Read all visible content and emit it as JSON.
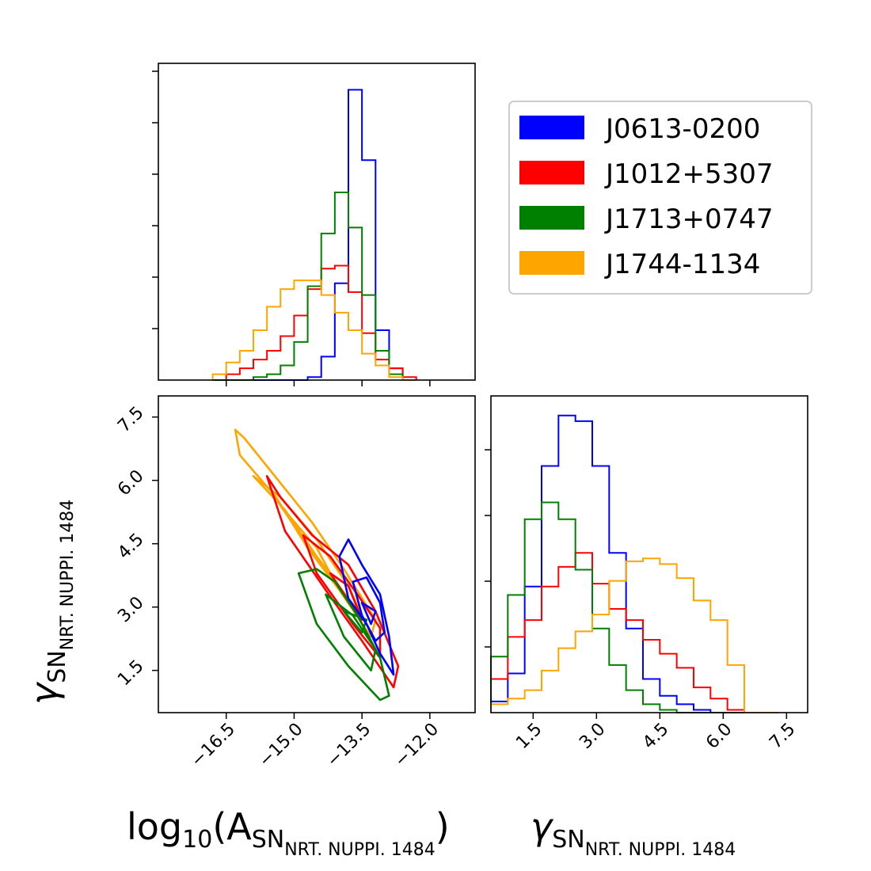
{
  "chart_data": {
    "type": "corner",
    "parameters": [
      {
        "id": "logA",
        "label_main": "log",
        "label_sub10": "10",
        "label_paren_open": "(A",
        "label_sn": "SN",
        "label_sub": "NRT. NUPPI. 1484",
        "label_paren_close": ")",
        "ticks": [
          "−16.5",
          "−15.0",
          "−13.5",
          "−12.0"
        ],
        "tick_values": [
          -16.5,
          -15.0,
          -13.5,
          -12.0
        ],
        "range": [
          -18.0,
          -11.0
        ]
      },
      {
        "id": "gamma",
        "label_main": "γ",
        "label_sn": "SN",
        "label_sub": "NRT. NUPPI. 1484",
        "ticks": [
          "1.5",
          "3.0",
          "4.5",
          "6.0",
          "7.5"
        ],
        "tick_values": [
          1.5,
          3.0,
          4.5,
          6.0,
          7.5
        ],
        "range": [
          0.5,
          8.0
        ]
      }
    ],
    "legend": {
      "placement": "top-right",
      "entries": [
        {
          "name": "J0613-0200",
          "color": "#0000ff"
        },
        {
          "name": "J1012+5307",
          "color": "#ff0000"
        },
        {
          "name": "J1713+0747",
          "color": "#008000"
        },
        {
          "name": "J1744-1134",
          "color": "#ffa500"
        }
      ]
    },
    "hist_logA": {
      "bin_edges": [
        -16.8,
        -16.5,
        -16.2,
        -15.9,
        -15.6,
        -15.3,
        -15.0,
        -14.7,
        -14.4,
        -14.1,
        -13.8,
        -13.5,
        -13.2,
        -12.9,
        -12.6,
        -12.3
      ],
      "series": [
        {
          "name": "J0613-0200",
          "color": "#0000ff",
          "values": [
            0,
            0,
            0,
            0,
            0,
            0,
            0,
            0.01,
            0.08,
            0.33,
            0.99,
            0.75,
            0.17,
            0.04,
            0
          ]
        },
        {
          "name": "J1012+5307",
          "color": "#ff0000",
          "values": [
            0,
            0.02,
            0.04,
            0.07,
            0.1,
            0.15,
            0.22,
            0.31,
            0.38,
            0.39,
            0.3,
            0.16,
            0.07,
            0.04,
            0.01
          ]
        },
        {
          "name": "J1713+0747",
          "color": "#008000",
          "values": [
            0,
            0,
            0,
            0.01,
            0.02,
            0.05,
            0.13,
            0.32,
            0.5,
            0.64,
            0.52,
            0.29,
            0.1,
            0.02,
            0
          ]
        },
        {
          "name": "J1744-1134",
          "color": "#ffa500",
          "values": [
            0.02,
            0.06,
            0.1,
            0.17,
            0.25,
            0.31,
            0.34,
            0.34,
            0.29,
            0.23,
            0.17,
            0.09,
            0.05,
            0.01,
            0
          ]
        }
      ]
    },
    "hist_gamma": {
      "bin_edges": [
        0.5,
        0.9,
        1.3,
        1.7,
        2.1,
        2.5,
        2.9,
        3.3,
        3.7,
        4.1,
        4.5,
        4.9,
        5.3,
        5.7,
        6.1,
        6.5,
        6.9,
        7.3
      ],
      "series": [
        {
          "name": "J0613-0200",
          "color": "#0000ff",
          "values": [
            0.04,
            0.14,
            0.45,
            0.88,
            1.06,
            1.04,
            0.88,
            0.57,
            0.3,
            0.12,
            0.06,
            0.03,
            0.01,
            0,
            0,
            0,
            0
          ]
        },
        {
          "name": "J1012+5307",
          "color": "#ff0000",
          "values": [
            0.12,
            0.27,
            0.33,
            0.45,
            0.52,
            0.57,
            0.46,
            0.37,
            0.33,
            0.26,
            0.21,
            0.16,
            0.09,
            0.05,
            0.01,
            0,
            0
          ]
        },
        {
          "name": "J1713+0747",
          "color": "#008000",
          "values": [
            0.2,
            0.42,
            0.69,
            0.75,
            0.69,
            0.51,
            0.3,
            0.17,
            0.08,
            0.03,
            0.01,
            0,
            0,
            0,
            0,
            0,
            0
          ]
        },
        {
          "name": "J1744-1134",
          "color": "#ffa500",
          "values": [
            0.03,
            0.05,
            0.08,
            0.15,
            0.23,
            0.29,
            0.35,
            0.47,
            0.54,
            0.55,
            0.53,
            0.48,
            0.4,
            0.33,
            0.17,
            0,
            0
          ]
        }
      ]
    },
    "contours_2d": [
      {
        "name": "J1744-1134",
        "color": "#ffa500",
        "levels": [
          [
            [
              -16.3,
              7.2
            ],
            [
              -16.2,
              6.6
            ],
            [
              -15.4,
              5.6
            ],
            [
              -14.7,
              4.4
            ],
            [
              -14.0,
              3.4
            ],
            [
              -13.3,
              2.3
            ],
            [
              -13.2,
              2.7
            ],
            [
              -13.9,
              3.9
            ],
            [
              -14.6,
              5.0
            ],
            [
              -15.5,
              6.2
            ],
            [
              -16.1,
              7.0
            ]
          ],
          [
            [
              -15.9,
              6.1
            ],
            [
              -15.2,
              5.3
            ],
            [
              -14.5,
              4.2
            ],
            [
              -13.8,
              3.2
            ],
            [
              -13.5,
              2.8
            ],
            [
              -13.8,
              3.5
            ],
            [
              -14.5,
              4.6
            ],
            [
              -15.3,
              5.6
            ]
          ],
          [
            [
              -15.3,
              5.4
            ],
            [
              -14.4,
              4.0
            ],
            [
              -14.1,
              3.6
            ],
            [
              -14.5,
              4.4
            ]
          ]
        ]
      },
      {
        "name": "J1012+5307",
        "color": "#ff0000",
        "levels": [
          [
            [
              -15.6,
              6.1
            ],
            [
              -15.2,
              4.8
            ],
            [
              -14.3,
              3.4
            ],
            [
              -13.5,
              2.2
            ],
            [
              -12.8,
              1.1
            ],
            [
              -12.7,
              1.6
            ],
            [
              -13.2,
              2.9
            ],
            [
              -13.8,
              4.0
            ],
            [
              -14.6,
              4.7
            ],
            [
              -15.3,
              5.6
            ]
          ],
          [
            [
              -14.8,
              4.7
            ],
            [
              -14.5,
              3.8
            ],
            [
              -13.7,
              2.6
            ],
            [
              -13.1,
              1.8
            ],
            [
              -13.1,
              2.5
            ],
            [
              -13.6,
              3.3
            ],
            [
              -14.2,
              4.2
            ]
          ],
          [
            [
              -14.2,
              3.8
            ],
            [
              -13.7,
              3.0
            ],
            [
              -13.5,
              2.7
            ],
            [
              -13.8,
              3.5
            ]
          ]
        ]
      },
      {
        "name": "J1713+0747",
        "color": "#008000",
        "levels": [
          [
            [
              -14.9,
              3.8
            ],
            [
              -14.5,
              2.6
            ],
            [
              -13.8,
              1.6
            ],
            [
              -13.1,
              0.8
            ],
            [
              -12.9,
              0.9
            ],
            [
              -13.1,
              1.8
            ],
            [
              -13.6,
              2.8
            ],
            [
              -14.1,
              3.6
            ],
            [
              -14.5,
              3.9
            ]
          ],
          [
            [
              -14.3,
              3.3
            ],
            [
              -13.9,
              2.3
            ],
            [
              -13.3,
              1.5
            ],
            [
              -13.2,
              2.0
            ],
            [
              -13.7,
              2.8
            ]
          ],
          [
            [
              -13.9,
              2.9
            ],
            [
              -13.5,
              2.4
            ],
            [
              -13.4,
              2.7
            ]
          ]
        ]
      },
      {
        "name": "J0613-0200",
        "color": "#0000ff",
        "levels": [
          [
            [
              -14.0,
              4.2
            ],
            [
              -13.8,
              3.2
            ],
            [
              -13.4,
              2.6
            ],
            [
              -13.1,
              1.9
            ],
            [
              -12.8,
              1.4
            ],
            [
              -12.9,
              2.3
            ],
            [
              -13.1,
              3.3
            ],
            [
              -13.5,
              4.0
            ],
            [
              -13.8,
              4.6
            ]
          ],
          [
            [
              -13.7,
              3.6
            ],
            [
              -13.5,
              2.8
            ],
            [
              -13.2,
              2.2
            ],
            [
              -13.0,
              2.4
            ],
            [
              -13.1,
              3.1
            ],
            [
              -13.4,
              3.7
            ]
          ],
          [
            [
              -13.5,
              3.1
            ],
            [
              -13.3,
              2.6
            ],
            [
              -13.2,
              2.9
            ]
          ]
        ]
      }
    ]
  }
}
